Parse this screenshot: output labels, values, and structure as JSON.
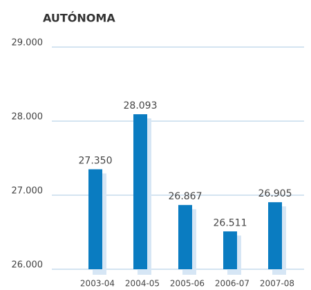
{
  "chart_data": {
    "type": "bar",
    "title": "AUTÓNOMA",
    "categories": [
      "2003-04",
      "2004-05",
      "2005-06",
      "2006-07",
      "2007-08"
    ],
    "values": [
      27350,
      28093,
      26867,
      26511,
      26905
    ],
    "value_labels": [
      "27.350",
      "28.093",
      "26.867",
      "26.511",
      "26.905"
    ],
    "color": "#0a7cc1",
    "ylim": [
      26000,
      29000
    ],
    "yticks": [
      {
        "value": 26000,
        "label": "26.000"
      },
      {
        "value": 27000,
        "label": "27.000"
      },
      {
        "value": 28000,
        "label": "28.000"
      },
      {
        "value": 29000,
        "label": "29.000"
      }
    ],
    "grid": true
  }
}
